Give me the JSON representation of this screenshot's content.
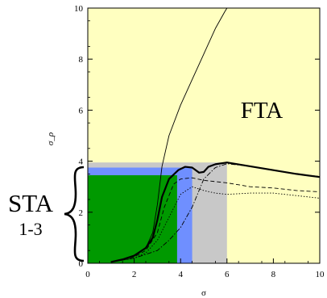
{
  "chart_data": {
    "type": "line",
    "xlabel": "σ",
    "ylabel": "σ_ρ",
    "xlim": [
      0,
      10
    ],
    "ylim": [
      0,
      10
    ],
    "xticks": [
      "0",
      "2",
      "4",
      "6",
      "8",
      "10"
    ],
    "yticks": [
      "0",
      "2",
      "4",
      "6",
      "8",
      "10"
    ],
    "regions": [
      {
        "label": "FTA",
        "color": "#ffffc0",
        "x": [
          0,
          10
        ],
        "y": [
          0,
          10
        ]
      },
      {
        "label": "",
        "color": "#c8c8c8",
        "x": [
          0,
          6
        ],
        "y": [
          0,
          3.95
        ]
      },
      {
        "label": "",
        "color": "#6f8fff",
        "x": [
          0,
          4.5
        ],
        "y": [
          0,
          3.75
        ]
      },
      {
        "label": "",
        "color": "#009900",
        "x": [
          0,
          3.85
        ],
        "y": [
          0,
          3.45
        ]
      }
    ],
    "region_labels": {
      "fta": "FTA",
      "sta": "STA",
      "sta_sub": "1-3"
    },
    "series": [
      {
        "style": "thin",
        "x": [
          1,
          1.5,
          2,
          2.5,
          2.8,
          3.0,
          3.2,
          3.5,
          4.0,
          4.5,
          5.0,
          5.5,
          5.9,
          6.0
        ],
        "y": [
          0.05,
          0.15,
          0.3,
          0.6,
          1.2,
          2.3,
          3.8,
          5.0,
          6.2,
          7.2,
          8.2,
          9.2,
          9.85,
          10
        ]
      },
      {
        "style": "thick",
        "x": [
          1,
          1.5,
          2,
          2.5,
          2.8,
          3.0,
          3.2,
          3.5,
          3.9,
          4.2,
          4.5,
          4.8,
          5.0,
          5.2,
          5.5,
          6.0,
          7.0,
          8.0,
          9.0,
          10.0
        ],
        "y": [
          0.05,
          0.15,
          0.3,
          0.6,
          1.0,
          1.7,
          2.6,
          3.3,
          3.65,
          3.78,
          3.75,
          3.55,
          3.58,
          3.78,
          3.88,
          3.95,
          3.8,
          3.65,
          3.5,
          3.38
        ]
      },
      {
        "style": "dashed",
        "x": [
          1,
          2,
          2.5,
          3.0,
          3.3,
          3.7,
          4.0,
          4.5,
          5.0,
          5.5,
          6.0,
          7.0,
          8.0,
          9.0,
          10.0
        ],
        "y": [
          0.05,
          0.25,
          0.5,
          1.2,
          2.2,
          3.1,
          3.3,
          3.35,
          3.25,
          3.2,
          3.15,
          3.0,
          2.95,
          2.85,
          2.8
        ]
      },
      {
        "style": "dotted",
        "x": [
          1,
          2,
          2.5,
          3.0,
          3.5,
          4.0,
          4.5,
          5.0,
          5.5,
          6.0,
          7.0,
          8.0,
          9.0,
          10.0
        ],
        "y": [
          0.05,
          0.2,
          0.4,
          0.9,
          1.8,
          2.7,
          3.0,
          2.85,
          2.75,
          2.7,
          2.75,
          2.75,
          2.65,
          2.55
        ]
      },
      {
        "style": "dashdot",
        "x": [
          1,
          2,
          3.0,
          3.5,
          4.0,
          4.5,
          5.0,
          5.5,
          6.0,
          7.0,
          8.0,
          9.0,
          10.0
        ],
        "y": [
          0.05,
          0.2,
          0.5,
          0.9,
          1.4,
          2.2,
          3.3,
          3.75,
          3.9,
          3.8,
          3.65,
          3.5,
          3.4
        ]
      }
    ]
  }
}
